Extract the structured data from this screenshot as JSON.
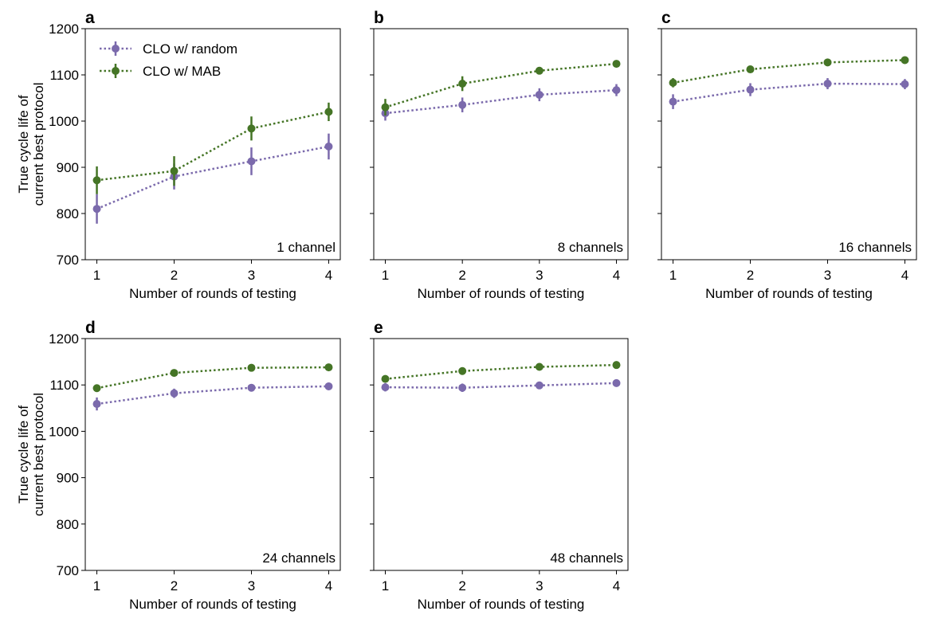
{
  "chart_data": [
    {
      "type": "line",
      "panel_label": "a",
      "annotation": "1 channel",
      "xlabel": "Number of rounds of testing",
      "ylabel_lines": [
        "True cycle life of",
        "current best protocol"
      ],
      "x": [
        1,
        2,
        3,
        4
      ],
      "xticks": [
        "1",
        "2",
        "3",
        "4"
      ],
      "ylim": [
        700,
        1200
      ],
      "yticks": [
        "700",
        "800",
        "900",
        "1000",
        "1100",
        "1200"
      ],
      "legend": "top-left",
      "series": [
        {
          "name": "CLO w/ random",
          "color": "#7b6aac",
          "values": [
            810,
            880,
            913,
            945
          ],
          "errors": [
            32,
            28,
            30,
            28
          ]
        },
        {
          "name": "CLO w/ MAB",
          "color": "#457526",
          "values": [
            872,
            892,
            984,
            1020
          ],
          "errors": [
            30,
            32,
            26,
            20
          ]
        }
      ]
    },
    {
      "type": "line",
      "panel_label": "b",
      "annotation": "8 channels",
      "xlabel": "Number of rounds of testing",
      "x": [
        1,
        2,
        3,
        4
      ],
      "xticks": [
        "1",
        "2",
        "3",
        "4"
      ],
      "ylim": [
        700,
        1200
      ],
      "series": [
        {
          "color": "#7b6aac",
          "values": [
            1017,
            1035,
            1057,
            1067
          ],
          "errors": [
            16,
            16,
            14,
            13
          ]
        },
        {
          "color": "#457526",
          "values": [
            1030,
            1081,
            1109,
            1124
          ],
          "errors": [
            18,
            16,
            6,
            4
          ]
        }
      ]
    },
    {
      "type": "line",
      "panel_label": "c",
      "annotation": "16 channels",
      "xlabel": "Number of rounds of testing",
      "x": [
        1,
        2,
        3,
        4
      ],
      "xticks": [
        "1",
        "2",
        "3",
        "4"
      ],
      "ylim": [
        700,
        1200
      ],
      "series": [
        {
          "color": "#7b6aac",
          "values": [
            1042,
            1068,
            1081,
            1080
          ],
          "errors": [
            16,
            14,
            12,
            11
          ]
        },
        {
          "color": "#457526",
          "values": [
            1083,
            1112,
            1127,
            1132
          ],
          "errors": [
            10,
            6,
            5,
            4
          ]
        }
      ]
    },
    {
      "type": "line",
      "panel_label": "d",
      "annotation": "24 channels",
      "xlabel": "Number of rounds of testing",
      "ylabel_lines": [
        "True cycle life of",
        "current best protocol"
      ],
      "x": [
        1,
        2,
        3,
        4
      ],
      "xticks": [
        "1",
        "2",
        "3",
        "4"
      ],
      "ylim": [
        700,
        1200
      ],
      "yticks": [
        "700",
        "800",
        "900",
        "1000",
        "1100",
        "1200"
      ],
      "series": [
        {
          "color": "#7b6aac",
          "values": [
            1059,
            1082,
            1094,
            1097
          ],
          "errors": [
            14,
            10,
            8,
            8
          ]
        },
        {
          "color": "#457526",
          "values": [
            1093,
            1126,
            1137,
            1138
          ],
          "errors": [
            5,
            5,
            4,
            4
          ]
        }
      ]
    },
    {
      "type": "line",
      "panel_label": "e",
      "annotation": "48 channels",
      "xlabel": "Number of rounds of testing",
      "x": [
        1,
        2,
        3,
        4
      ],
      "xticks": [
        "1",
        "2",
        "3",
        "4"
      ],
      "ylim": [
        700,
        1200
      ],
      "series": [
        {
          "color": "#7b6aac",
          "values": [
            1095,
            1094,
            1099,
            1104
          ],
          "errors": [
            9,
            9,
            8,
            7
          ]
        },
        {
          "color": "#457526",
          "values": [
            1113,
            1130,
            1139,
            1143
          ],
          "errors": [
            5,
            4,
            4,
            4
          ]
        }
      ]
    }
  ]
}
